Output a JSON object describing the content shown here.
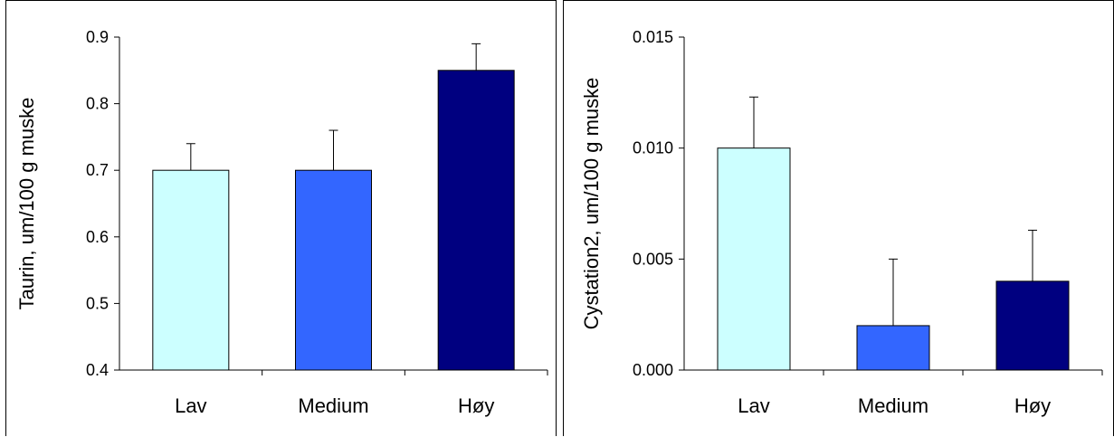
{
  "chart_data": [
    {
      "type": "bar",
      "categories": [
        "Lav",
        "Medium",
        "Høy"
      ],
      "values": [
        0.7,
        0.7,
        0.85
      ],
      "error": [
        0.04,
        0.06,
        0.04
      ],
      "colors": [
        "#ccffff",
        "#3366ff",
        "#000080"
      ],
      "ylabel": "Taurin, um/100 g muske",
      "xlabel": "",
      "ylim": [
        0.4,
        0.9
      ],
      "yticks": [
        0.4,
        0.5,
        0.6,
        0.7,
        0.8,
        0.9
      ],
      "ytick_labels": [
        "0.4",
        "0.5",
        "0.6",
        "0.7",
        "0.8",
        "0.9"
      ],
      "grid": false
    },
    {
      "type": "bar",
      "categories": [
        "Lav",
        "Medium",
        "Høy"
      ],
      "values": [
        0.01,
        0.002,
        0.004
      ],
      "error": [
        0.0023,
        0.003,
        0.0023
      ],
      "colors": [
        "#ccffff",
        "#3366ff",
        "#000080"
      ],
      "ylabel": "Cystation2, um/100 g muske",
      "xlabel": "",
      "ylim": [
        0.0,
        0.015
      ],
      "yticks": [
        0.0,
        0.005,
        0.01,
        0.015
      ],
      "ytick_labels": [
        "0.000",
        "0.005",
        "0.010",
        "0.015"
      ],
      "grid": false
    }
  ]
}
